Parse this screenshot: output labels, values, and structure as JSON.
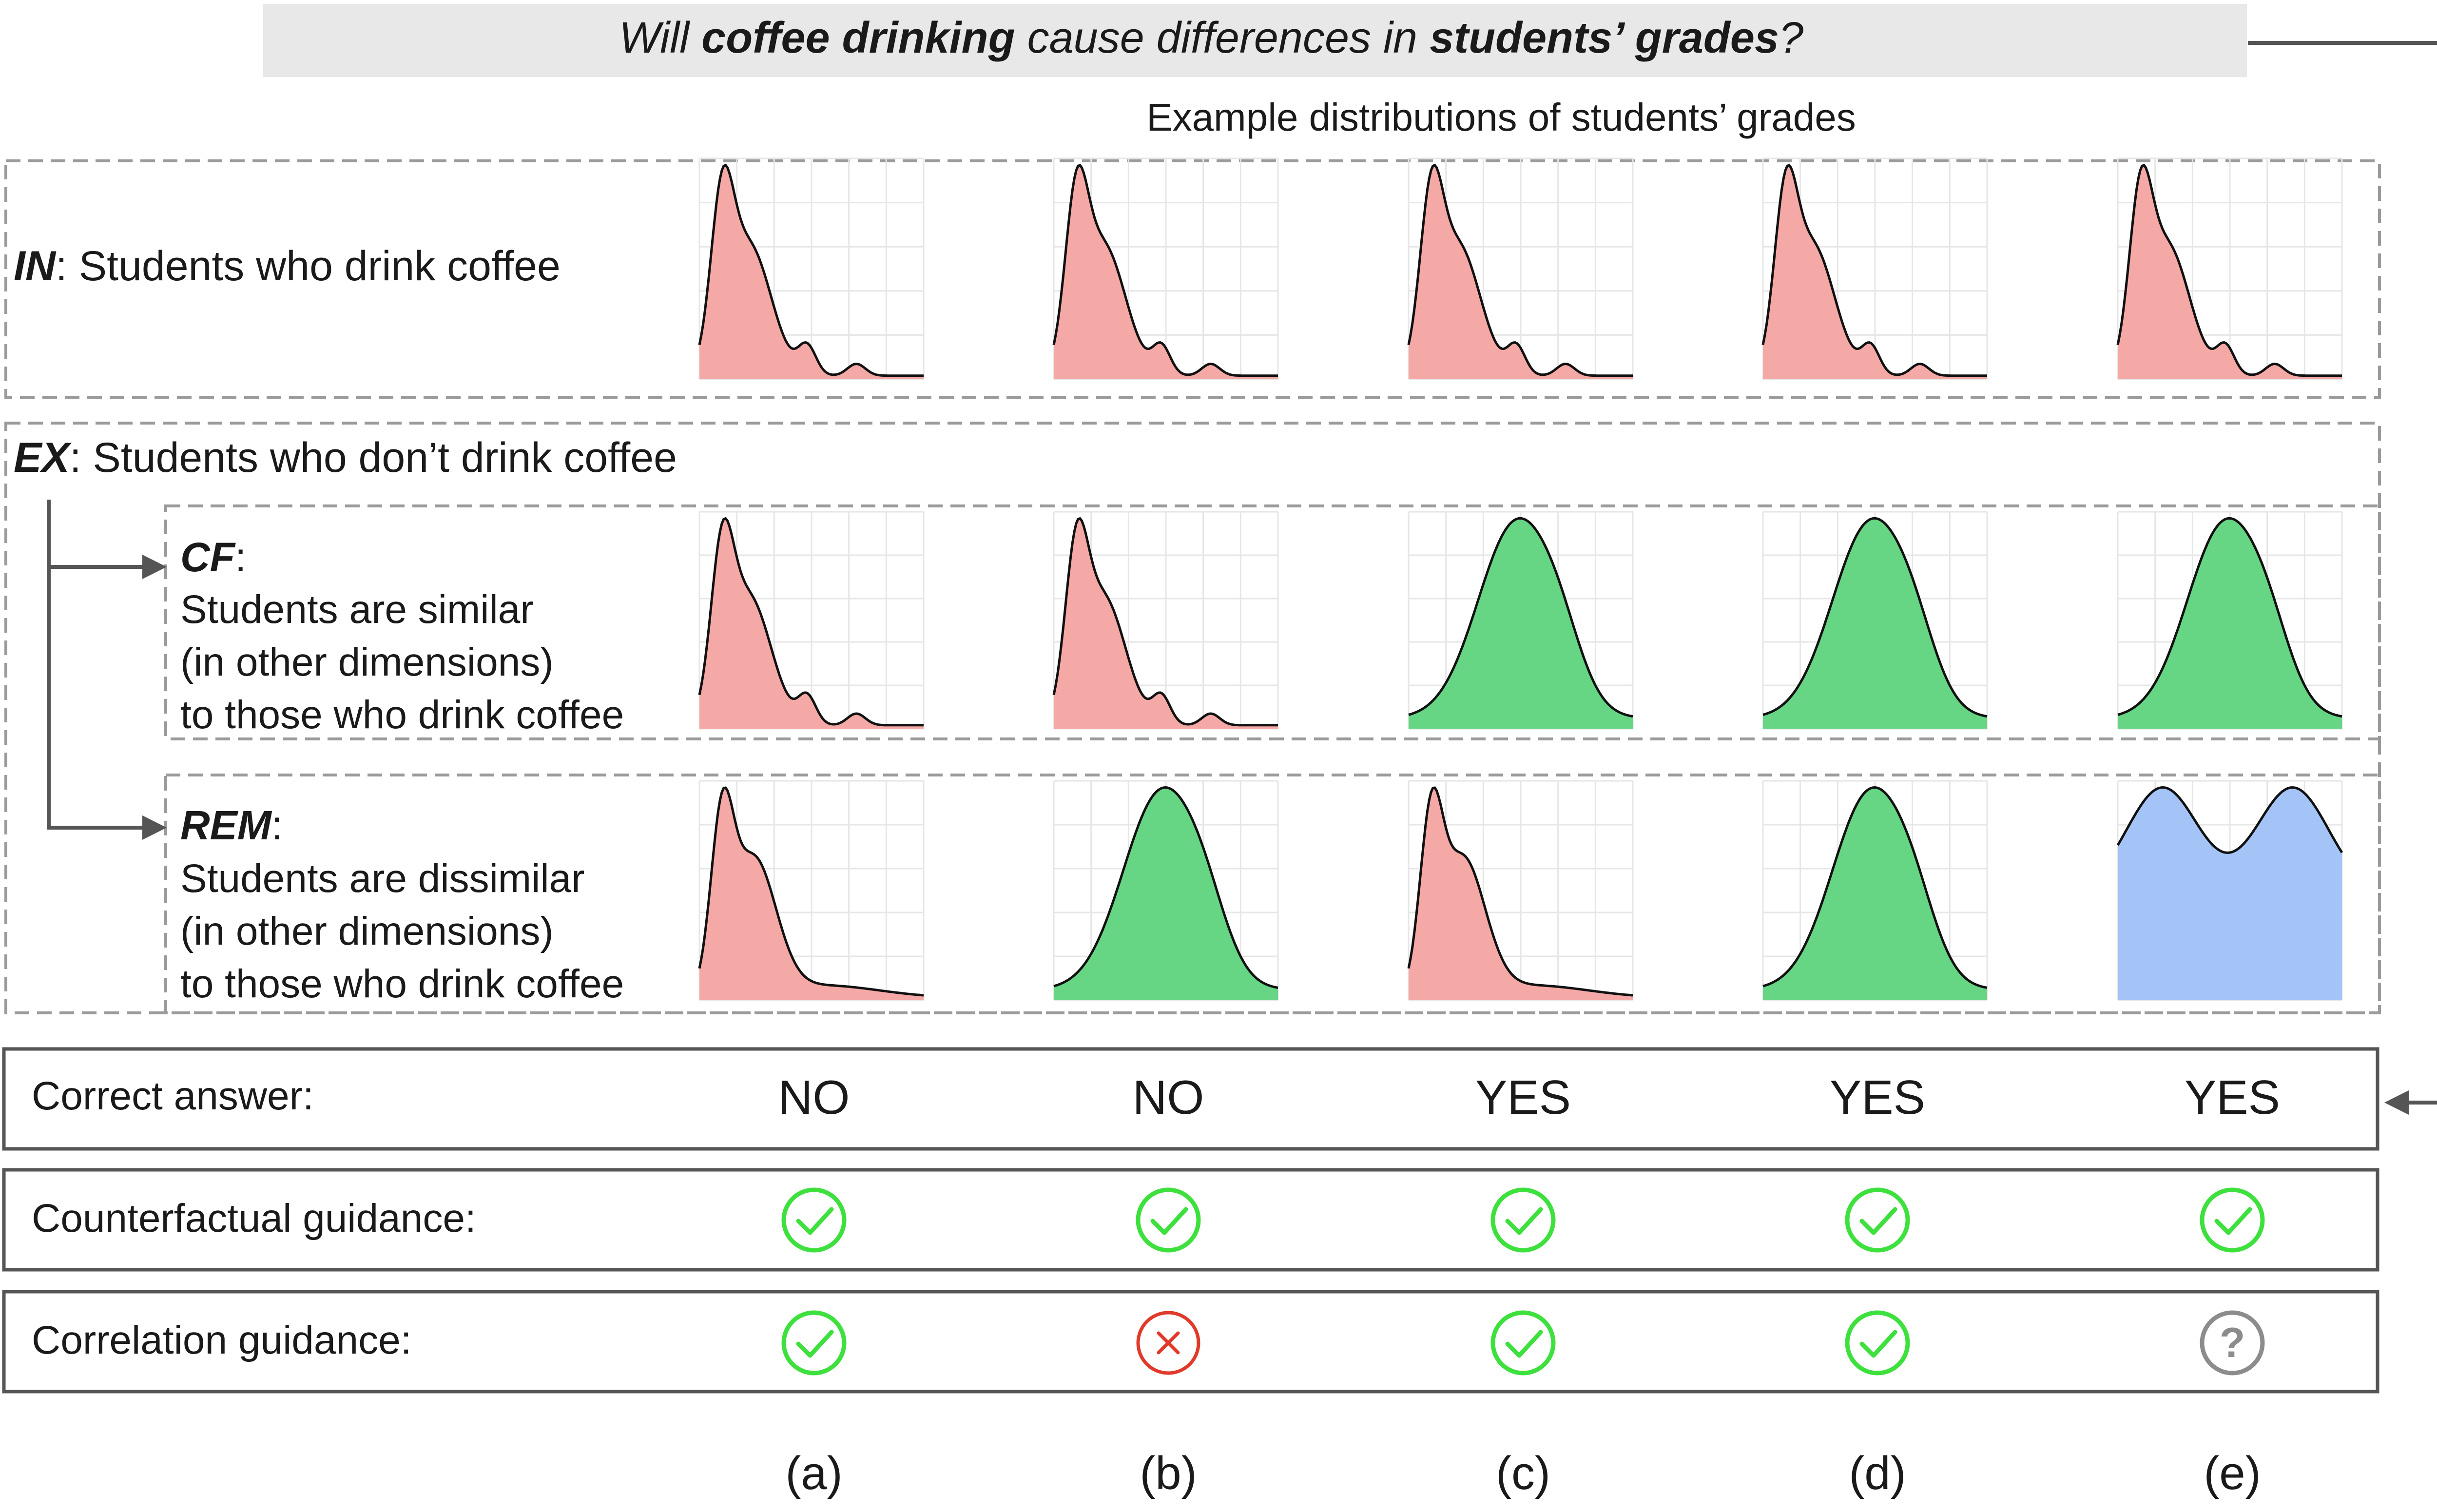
{
  "question": {
    "p1": "Will ",
    "b1": "coffee drinking",
    "p2": " cause differences in ",
    "b2": "students’ grades",
    "p3": "?"
  },
  "section_title": "Example distributions of students’ grades",
  "rows": {
    "in": {
      "tag": "IN",
      "text": ":   Students who drink coffee"
    },
    "ex": {
      "tag": "EX",
      "text": ": Students who don’t drink coffee"
    },
    "cf": {
      "tag": "CF",
      "colon": ":",
      "lines": [
        "Students are similar",
        "(in other dimensions)",
        "to those who drink coffee"
      ]
    },
    "rem": {
      "tag": "REM",
      "colon": ":",
      "lines": [
        "Students are dissimilar",
        "(in other dimensions)",
        "to those who drink coffee"
      ]
    }
  },
  "answers": {
    "label": "Correct answer:",
    "values": [
      "NO",
      "NO",
      "YES",
      "YES",
      "YES"
    ]
  },
  "counterfactual": {
    "label": "Counterfactual guidance:",
    "icons": [
      "check-icon",
      "check-icon",
      "check-icon",
      "check-icon",
      "check-icon"
    ]
  },
  "correlation": {
    "label": "Correlation guidance:",
    "icons": [
      "check-icon",
      "cross-icon",
      "check-icon",
      "check-icon",
      "question-icon"
    ]
  },
  "column_labels": [
    "(a)",
    "(b)",
    "(c)",
    "(d)",
    "(e)"
  ],
  "distributions": {
    "in": [
      "skewed",
      "skewed",
      "skewed",
      "skewed",
      "skewed"
    ],
    "cf": [
      "skewed",
      "skewed",
      "normal",
      "normal",
      "normal"
    ],
    "rem": [
      "skewed-smooth",
      "normal",
      "skewed-smooth",
      "normal",
      "bimodal"
    ]
  },
  "colors": {
    "skewed": "#f5a9a6",
    "normal": "#66d685",
    "bimodal": "#a4c4f7",
    "check": "#3ee03e",
    "cross": "#e03a2a",
    "question": "#8c8c8c"
  }
}
